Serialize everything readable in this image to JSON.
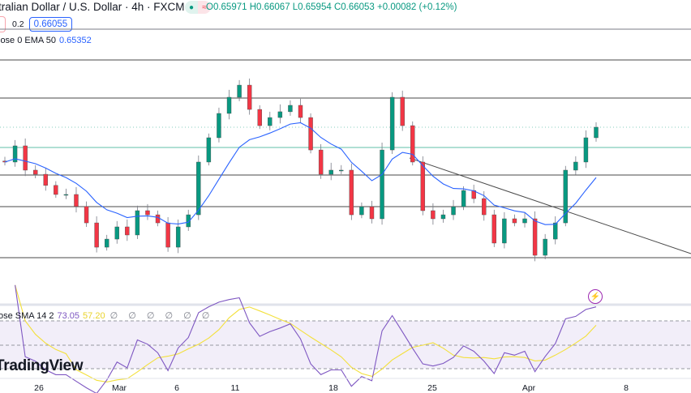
{
  "header": {
    "title": "tralian Dollar / U.S. Dollar · 4h · FXCM",
    "market_status_icon": "green-dot-icon",
    "data_icon": "wave-icon",
    "ohlc": "O0.65971 H0.66067 L0.65954 C0.66053 +0.00082 (+0.12%)",
    "spread": "0.2",
    "buy_price": "0.66055"
  },
  "ema_legend": {
    "label": "lose 0 EMA 50",
    "value": "0.65352"
  },
  "rsi_legend": {
    "label": "ose SMA 14 2",
    "rsi": "73.05",
    "sma": "57.20",
    "extra": "∅ ∅ ∅ ∅ ∅ ∅"
  },
  "logo": "TradingView",
  "x_axis": [
    "26",
    "Mar",
    "6",
    "11",
    "18",
    "25",
    "Apr",
    "8"
  ],
  "colors": {
    "up": "#089981",
    "down": "#f23645",
    "ema": "#2962ff",
    "rsi": "#7e57c2",
    "rsi_sma": "#f3e03b",
    "level_teal": "#5fbfa8"
  },
  "chart_data": {
    "type": "candlestick",
    "symbol": "AUD/USD",
    "timeframe": "4h",
    "closes": [
      0.65722,
      0.65876,
      0.65645,
      0.65606,
      0.655,
      0.65414,
      0.65414,
      0.653,
      0.65144,
      0.64913,
      0.6499,
      0.65106,
      0.65029,
      0.6526,
      0.65221,
      0.65144,
      0.64913,
      0.65106,
      0.65221,
      0.65722,
      0.65953,
      0.66184,
      0.66338,
      0.66453,
      0.66222,
      0.66068,
      0.66145,
      0.662,
      0.66261,
      0.66145,
      0.65837,
      0.65606,
      0.65645,
      0.65645,
      0.65221,
      0.65298,
      0.65183,
      0.65837,
      0.66338,
      0.66068,
      0.65722,
      0.6526,
      0.65183,
      0.65221,
      0.65298,
      0.65452,
      0.65375,
      0.65221,
      0.64952,
      0.65183,
      0.65144,
      0.65183,
      0.64836,
      0.6499,
      0.65144,
      0.65645,
      0.65722,
      0.65953,
      0.66053
    ]
  }
}
